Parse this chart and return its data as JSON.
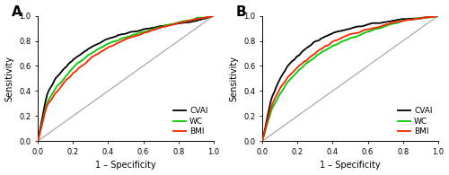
{
  "panel_A_label": "A",
  "panel_B_label": "B",
  "xlabel": "1 – Specificity",
  "ylabel": "Sensitivity",
  "xticks": [
    0.0,
    0.2,
    0.4,
    0.6,
    0.8,
    1.0
  ],
  "yticks": [
    0.0,
    0.2,
    0.4,
    0.6,
    0.8,
    1.0
  ],
  "legend_labels": [
    "CVAI",
    "WC",
    "BMI"
  ],
  "line_colors": [
    "#000000",
    "#00cc00",
    "#ff2200"
  ],
  "line_width": 1.3,
  "diag_color": "#aaaaaa",
  "background_color": "#ffffff",
  "panel_A_cvai_pts": [
    [
      0,
      0
    ],
    [
      0.05,
      0.37
    ],
    [
      0.1,
      0.5
    ],
    [
      0.15,
      0.58
    ],
    [
      0.2,
      0.65
    ],
    [
      0.3,
      0.75
    ],
    [
      0.4,
      0.82
    ],
    [
      0.5,
      0.86
    ],
    [
      0.6,
      0.89
    ],
    [
      0.7,
      0.92
    ],
    [
      0.8,
      0.94
    ],
    [
      0.9,
      0.96
    ],
    [
      1.0,
      1.0
    ]
  ],
  "panel_A_wc_pts": [
    [
      0,
      0
    ],
    [
      0.05,
      0.3
    ],
    [
      0.1,
      0.42
    ],
    [
      0.15,
      0.5
    ],
    [
      0.2,
      0.59
    ],
    [
      0.3,
      0.7
    ],
    [
      0.4,
      0.78
    ],
    [
      0.5,
      0.83
    ],
    [
      0.6,
      0.87
    ],
    [
      0.7,
      0.91
    ],
    [
      0.8,
      0.95
    ],
    [
      0.9,
      0.98
    ],
    [
      1.0,
      1.0
    ]
  ],
  "panel_A_bmi_pts": [
    [
      0,
      0
    ],
    [
      0.05,
      0.28
    ],
    [
      0.1,
      0.38
    ],
    [
      0.15,
      0.47
    ],
    [
      0.2,
      0.54
    ],
    [
      0.3,
      0.66
    ],
    [
      0.4,
      0.75
    ],
    [
      0.5,
      0.81
    ],
    [
      0.6,
      0.86
    ],
    [
      0.7,
      0.91
    ],
    [
      0.8,
      0.94
    ],
    [
      0.9,
      0.97
    ],
    [
      1.0,
      1.0
    ]
  ],
  "panel_B_cvai_pts": [
    [
      0,
      0
    ],
    [
      0.05,
      0.34
    ],
    [
      0.1,
      0.5
    ],
    [
      0.15,
      0.61
    ],
    [
      0.2,
      0.68
    ],
    [
      0.25,
      0.74
    ],
    [
      0.3,
      0.79
    ],
    [
      0.35,
      0.83
    ],
    [
      0.4,
      0.86
    ],
    [
      0.5,
      0.9
    ],
    [
      0.6,
      0.93
    ],
    [
      0.7,
      0.95
    ],
    [
      0.8,
      0.97
    ],
    [
      0.9,
      0.98
    ],
    [
      1.0,
      1.0
    ]
  ],
  "panel_B_wc_pts": [
    [
      0,
      0
    ],
    [
      0.05,
      0.25
    ],
    [
      0.1,
      0.38
    ],
    [
      0.15,
      0.48
    ],
    [
      0.2,
      0.56
    ],
    [
      0.25,
      0.62
    ],
    [
      0.3,
      0.67
    ],
    [
      0.35,
      0.72
    ],
    [
      0.4,
      0.76
    ],
    [
      0.5,
      0.82
    ],
    [
      0.6,
      0.87
    ],
    [
      0.7,
      0.92
    ],
    [
      0.8,
      0.96
    ],
    [
      0.9,
      0.98
    ],
    [
      1.0,
      1.0
    ]
  ],
  "panel_B_bmi_pts": [
    [
      0,
      0
    ],
    [
      0.05,
      0.28
    ],
    [
      0.1,
      0.42
    ],
    [
      0.15,
      0.52
    ],
    [
      0.2,
      0.59
    ],
    [
      0.25,
      0.65
    ],
    [
      0.3,
      0.7
    ],
    [
      0.35,
      0.75
    ],
    [
      0.4,
      0.79
    ],
    [
      0.5,
      0.85
    ],
    [
      0.6,
      0.89
    ],
    [
      0.7,
      0.93
    ],
    [
      0.8,
      0.96
    ],
    [
      0.9,
      0.98
    ],
    [
      1.0,
      1.0
    ]
  ]
}
